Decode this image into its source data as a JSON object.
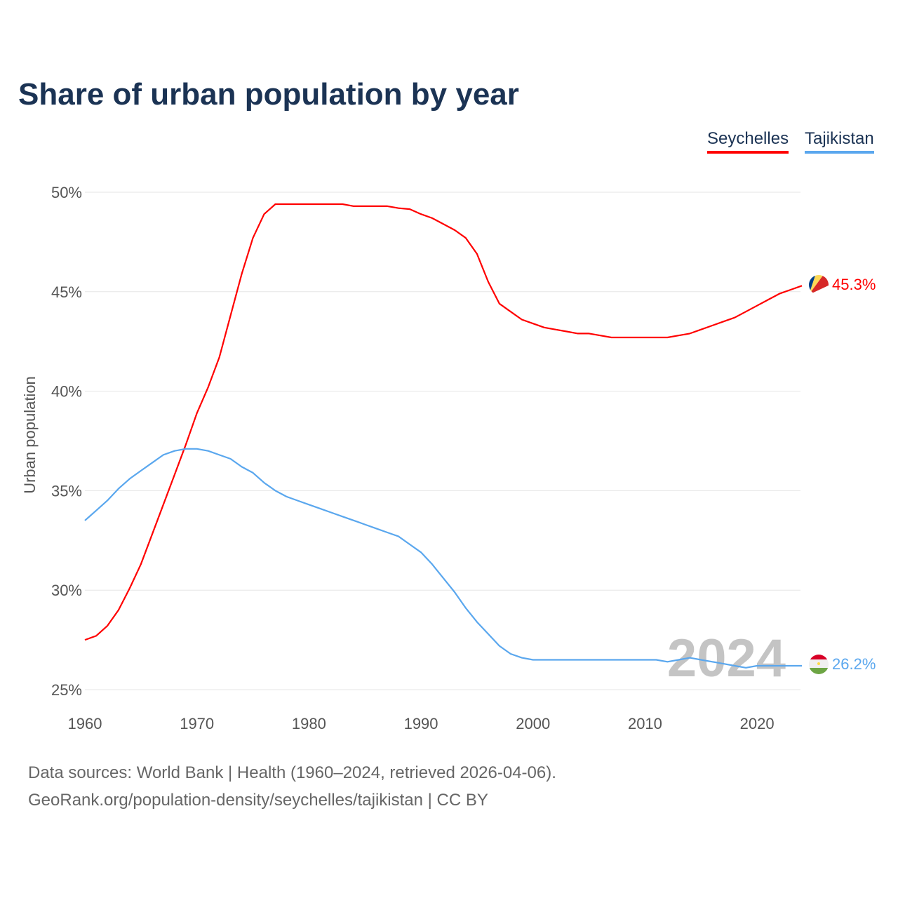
{
  "chart_data": {
    "type": "line",
    "title": "Share of urban population by year",
    "xlabel": "",
    "ylabel": "Urban population",
    "xlim": [
      1960,
      2024
    ],
    "ylim": [
      25,
      50
    ],
    "yticks": [
      25,
      30,
      35,
      40,
      45,
      50
    ],
    "ytick_labels": [
      "25%",
      "30%",
      "35%",
      "40%",
      "45%",
      "50%"
    ],
    "xticks": [
      1960,
      1970,
      1980,
      1990,
      2000,
      2010,
      2020
    ],
    "xtick_labels": [
      "1960",
      "1970",
      "1980",
      "1990",
      "2000",
      "2010",
      "2020"
    ],
    "grid": true,
    "legend": "top-right",
    "year_watermark": "2024",
    "x": [
      1960,
      1961,
      1962,
      1963,
      1964,
      1965,
      1966,
      1967,
      1968,
      1969,
      1970,
      1971,
      1972,
      1973,
      1974,
      1975,
      1976,
      1977,
      1978,
      1979,
      1980,
      1981,
      1982,
      1983,
      1984,
      1985,
      1986,
      1987,
      1988,
      1989,
      1990,
      1991,
      1992,
      1993,
      1994,
      1995,
      1996,
      1997,
      1998,
      1999,
      2000,
      2001,
      2002,
      2003,
      2004,
      2005,
      2006,
      2007,
      2008,
      2009,
      2010,
      2011,
      2012,
      2013,
      2014,
      2015,
      2016,
      2017,
      2018,
      2019,
      2020,
      2021,
      2022,
      2023,
      2024
    ],
    "series": [
      {
        "name": "Seychelles",
        "color": "#ff0000",
        "end_label": "45.3%",
        "values": [
          27.5,
          27.7,
          28.2,
          29.0,
          30.1,
          31.3,
          32.8,
          34.3,
          35.8,
          37.3,
          38.9,
          40.2,
          41.7,
          43.8,
          45.9,
          47.7,
          48.9,
          49.4,
          49.4,
          49.4,
          49.4,
          49.4,
          49.4,
          49.4,
          49.3,
          49.3,
          49.3,
          49.3,
          49.2,
          49.15,
          48.9,
          48.7,
          48.4,
          48.1,
          47.7,
          46.9,
          45.5,
          44.4,
          44.0,
          43.6,
          43.4,
          43.2,
          43.1,
          43.0,
          42.9,
          42.9,
          42.8,
          42.7,
          42.7,
          42.7,
          42.7,
          42.7,
          42.7,
          42.8,
          42.9,
          43.1,
          43.3,
          43.5,
          43.7,
          44.0,
          44.3,
          44.6,
          44.9,
          45.1,
          45.3
        ]
      },
      {
        "name": "Tajikistan",
        "color": "#5aa7ee",
        "end_label": "26.2%",
        "values": [
          33.5,
          34.0,
          34.5,
          35.1,
          35.6,
          36.0,
          36.4,
          36.8,
          37.0,
          37.1,
          37.1,
          37.0,
          36.8,
          36.6,
          36.2,
          35.9,
          35.4,
          35.0,
          34.7,
          34.5,
          34.3,
          34.1,
          33.9,
          33.7,
          33.5,
          33.3,
          33.1,
          32.9,
          32.7,
          32.3,
          31.9,
          31.3,
          30.6,
          29.9,
          29.1,
          28.4,
          27.8,
          27.2,
          26.8,
          26.6,
          26.5,
          26.5,
          26.5,
          26.5,
          26.5,
          26.5,
          26.5,
          26.5,
          26.5,
          26.5,
          26.5,
          26.5,
          26.4,
          26.5,
          26.6,
          26.5,
          26.4,
          26.3,
          26.2,
          26.1,
          26.2,
          26.2,
          26.2,
          26.2,
          26.2
        ]
      }
    ]
  },
  "footer": {
    "line1": "Data sources: World Bank | Health (1960–2024, retrieved 2026-04-06).",
    "line2": "GeoRank.org/population-density/seychelles/tajikistan | CC BY"
  }
}
